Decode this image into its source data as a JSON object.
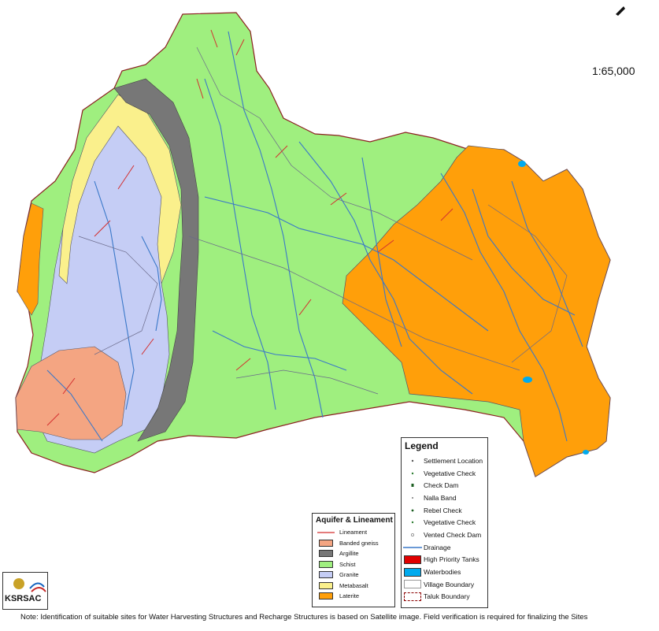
{
  "scale_text": "1:65,000",
  "legend": {
    "title": "Legend",
    "items": [
      {
        "label": "Settlement Location",
        "symbol": "dot",
        "color": "#555555"
      },
      {
        "label": "Vegetative Check",
        "symbol": "dot",
        "color": "#2e7d32"
      },
      {
        "label": "Check Dam",
        "symbol": "dot",
        "color": "#1b5e20"
      },
      {
        "label": "Nalla Band",
        "symbol": "dot",
        "color": "#777777"
      },
      {
        "label": "Rebel Check",
        "symbol": "dot",
        "color": "#1b5e20"
      },
      {
        "label": "Vegetative Check",
        "symbol": "dot",
        "color": "#2e7d32"
      },
      {
        "label": "Vented Check Dam",
        "symbol": "dot",
        "color": "#888888"
      },
      {
        "label": "Drainage",
        "symbol": "line",
        "color": "#3a78c9"
      },
      {
        "label": "High Priority Tanks",
        "symbol": "box",
        "color": "#e00000"
      },
      {
        "label": "Waterbodies",
        "symbol": "box",
        "color": "#00aaee"
      },
      {
        "label": "Village Boundary",
        "symbol": "box",
        "color": "#ffffff"
      },
      {
        "label": "Taluk Boundary",
        "symbol": "dashbox",
        "color": "#8b0000"
      }
    ]
  },
  "aquifer": {
    "title": "Aquifer & Lineament",
    "items": [
      {
        "label": "Lineament",
        "symbol": "line",
        "color": "#d32f2f"
      },
      {
        "label": "Banded gneiss",
        "symbol": "box",
        "color": "#f4a582"
      },
      {
        "label": "Argillite",
        "symbol": "box",
        "color": "#777777"
      },
      {
        "label": "Schist",
        "symbol": "box",
        "color": "#9fef7f"
      },
      {
        "label": "Granite",
        "symbol": "box",
        "color": "#c5cdf5"
      },
      {
        "label": "Metabasalt",
        "symbol": "box",
        "color": "#faf08c"
      },
      {
        "label": "Laterite",
        "symbol": "box",
        "color": "#ff9f0a"
      }
    ]
  },
  "logo_text": "KSRSAC",
  "note": "Note:  Identification of suitable sites for Water Harvesting Structures and  Recharge Structures is based on Satellite image. Field verification is  required for  finalizing the Sites",
  "colors": {
    "schist": "#9fef7f",
    "laterite": "#ff9f0a",
    "granite": "#c5cdf5",
    "banded_gneiss": "#f4a582",
    "argillite": "#777777",
    "metabasalt": "#faf08c",
    "drainage": "#3a78c9",
    "lineament": "#d32f2f",
    "boundary": "#8b2020"
  }
}
